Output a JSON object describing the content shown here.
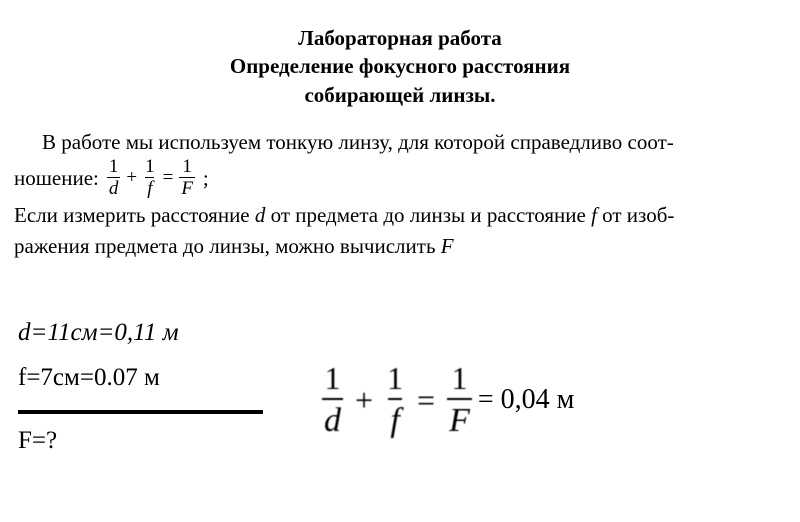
{
  "title": {
    "line1": "Лабораторная работа",
    "line2": "Определение фокусного расстояния",
    "line3": "собирающей линзы."
  },
  "intro": {
    "p1a": "В работе мы используем тонкую линзу, для которой справедливо соот-",
    "p1b_prefix": "ношение:",
    "p1b_suffix": ";",
    "p2a": "Если измерить расстояние ",
    "p2_var_d": "d",
    "p2b": " от предмета до линзы и расстояние ",
    "p2_var_f": "f",
    "p2c": " от изоб-",
    "p2d": "ражения предмета до линзы, можно вычислить ",
    "p2_var_F": "F"
  },
  "formula_small": {
    "n1": "1",
    "d1": "d",
    "plus": "+",
    "n2": "1",
    "d2": "f",
    "eq": "=",
    "n3": "1",
    "d3": "F"
  },
  "given": {
    "d_line": "d=11см=0,11 м",
    "f_line": "f=7см=0.07 м",
    "q_line": "F=?"
  },
  "formula_big": {
    "n1": "1",
    "d1": "d",
    "plus": "+",
    "n2": "1",
    "d2": "f",
    "eq": "=",
    "n3": "1",
    "d3": "F"
  },
  "result": "= 0,04 м"
}
